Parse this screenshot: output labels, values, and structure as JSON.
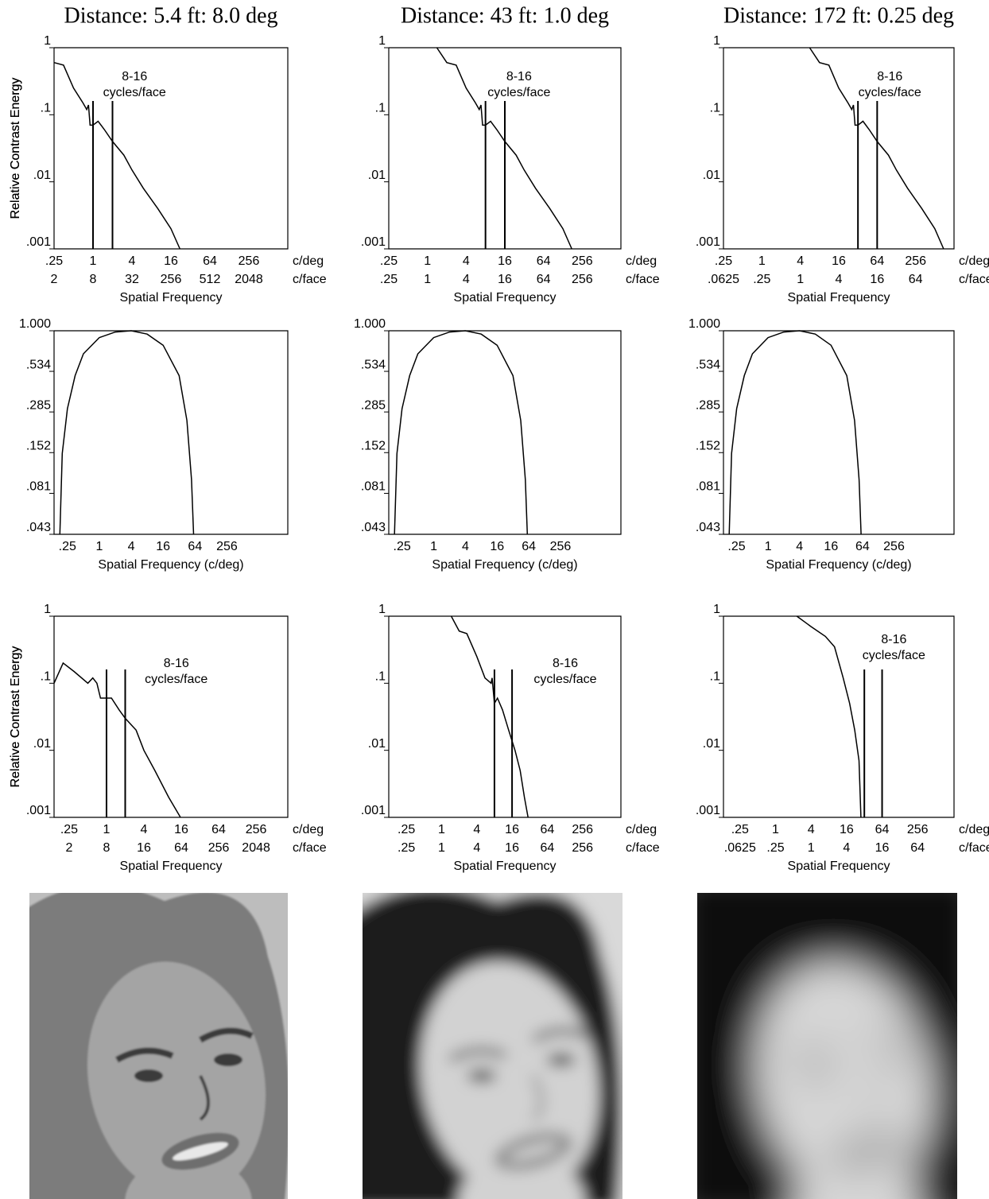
{
  "chart_data": [
    {
      "type": "line",
      "title": "Distance: 5.4 ft: 8.0 deg",
      "ylabel": "Relative Contrast Energy",
      "xlabel": "Spatial Frequency",
      "xunit": "c/deg",
      "x2unit": "c/face",
      "annotation": [
        "8-16",
        "cycles/face"
      ],
      "log_x": true,
      "log_y": true,
      "color": "#000000",
      "xlim": [
        0.25,
        1024
      ],
      "ylim": [
        0.001,
        1
      ],
      "xticks": [
        {
          "value": 0.25,
          "label": ".25"
        },
        1,
        4,
        16,
        64,
        256
      ],
      "x2ticks": [
        2,
        8,
        32,
        256,
        512,
        2048
      ],
      "yticks": [
        {
          "value": 0.001,
          "label": ".001"
        },
        {
          "value": 0.01,
          "label": ".01"
        },
        {
          "value": 0.1,
          "label": ".1"
        },
        1
      ],
      "markers": [
        1,
        2
      ],
      "x": [
        0.25,
        0.35,
        0.5,
        0.7,
        0.8,
        0.85,
        0.9,
        1,
        1.2,
        1.5,
        2,
        3,
        4,
        6,
        10,
        16,
        22
      ],
      "values": [
        0.6,
        0.55,
        0.25,
        0.15,
        0.12,
        0.14,
        0.07,
        0.07,
        0.08,
        0.06,
        0.04,
        0.025,
        0.015,
        0.008,
        0.004,
        0.002,
        0.001
      ]
    },
    {
      "type": "line",
      "title": "Distance: 43 ft: 1.0 deg",
      "ylabel": "Relative Contrast Energy",
      "xlabel": "Spatial Frequency",
      "xunit": "c/deg",
      "x2unit": "c/face",
      "annotation": [
        "8-16",
        "cycles/face"
      ],
      "log_x": true,
      "log_y": true,
      "color": "#000000",
      "xlim": [
        0.25,
        1024
      ],
      "ylim": [
        0.001,
        1
      ],
      "xticks": [
        {
          "value": 0.25,
          "label": ".25"
        },
        1,
        4,
        16,
        64,
        256
      ],
      "x2ticks": [
        {
          "value": 0.25,
          "label": ".25"
        },
        1,
        4,
        16,
        64,
        256
      ],
      "yticks": [
        {
          "value": 0.001,
          "label": ".001"
        },
        {
          "value": 0.01,
          "label": ".01"
        },
        {
          "value": 0.1,
          "label": ".1"
        },
        1
      ],
      "markers": [
        8,
        16
      ],
      "x": [
        1.4,
        2,
        2.8,
        4,
        5.6,
        6.4,
        6.8,
        7.2,
        8,
        9.6,
        12,
        16,
        24,
        32,
        48,
        80,
        128,
        176
      ],
      "values": [
        1,
        0.6,
        0.55,
        0.25,
        0.15,
        0.12,
        0.14,
        0.07,
        0.07,
        0.08,
        0.06,
        0.04,
        0.025,
        0.015,
        0.008,
        0.004,
        0.002,
        0.001
      ]
    },
    {
      "type": "line",
      "title": "Distance: 172 ft: 0.25 deg",
      "ylabel": "Relative Contrast Energy",
      "xlabel": "Spatial Frequency",
      "xunit": "c/deg",
      "x2unit": "c/face",
      "annotation": [
        "8-16",
        "cycles/face"
      ],
      "log_x": true,
      "log_y": true,
      "color": "#000000",
      "xlim": [
        0.25,
        1024
      ],
      "ylim": [
        0.001,
        1
      ],
      "xticks": [
        {
          "value": 0.25,
          "label": ".25"
        },
        1,
        4,
        16,
        64,
        256
      ],
      "x2ticks": [
        {
          "value": 0.0625,
          "label": ".0625"
        },
        {
          "value": 0.25,
          "label": ".25"
        },
        1,
        4,
        16,
        64
      ],
      "yticks": [
        {
          "value": 0.001,
          "label": ".001"
        },
        {
          "value": 0.01,
          "label": ".01"
        },
        {
          "value": 0.1,
          "label": ".1"
        },
        1
      ],
      "markers": [
        32,
        64
      ],
      "x": [
        5.6,
        8,
        11.2,
        16,
        22.4,
        25.6,
        27.2,
        28.8,
        32,
        38.4,
        48,
        64,
        96,
        128,
        192,
        320,
        512,
        704
      ],
      "values": [
        1,
        0.6,
        0.55,
        0.25,
        0.15,
        0.12,
        0.14,
        0.07,
        0.07,
        0.08,
        0.06,
        0.04,
        0.025,
        0.015,
        0.008,
        0.004,
        0.002,
        0.001
      ]
    },
    {
      "type": "line",
      "xlabel": "Spatial Frequency (c/deg)",
      "log_x": true,
      "log_y": true,
      "color": "#000000",
      "xlim": [
        0.14,
        3600
      ],
      "ylim": [
        0.043,
        1
      ],
      "xticks": [
        {
          "value": 0.25,
          "label": ".25"
        },
        1,
        4,
        16,
        64,
        256
      ],
      "yticks": [
        {
          "value": 0.043,
          "label": ".043"
        },
        {
          "value": 0.081,
          "label": ".081"
        },
        {
          "value": 0.152,
          "label": ".152"
        },
        {
          "value": 0.285,
          "label": ".285"
        },
        {
          "value": 0.534,
          "label": ".534"
        },
        {
          "value": 1,
          "label": "1.000"
        }
      ],
      "x": [
        0.18,
        0.2,
        0.25,
        0.35,
        0.5,
        1,
        2,
        4,
        8,
        16,
        32,
        45,
        55,
        60
      ],
      "values": [
        0.043,
        0.15,
        0.3,
        0.5,
        0.7,
        0.9,
        0.98,
        1,
        0.95,
        0.8,
        0.5,
        0.25,
        0.1,
        0.043
      ]
    },
    {
      "type": "line",
      "xlabel": "Spatial Frequency (c/deg)",
      "log_x": true,
      "log_y": true,
      "color": "#000000",
      "xlim": [
        0.14,
        3600
      ],
      "ylim": [
        0.043,
        1
      ],
      "xticks": [
        {
          "value": 0.25,
          "label": ".25"
        },
        1,
        4,
        16,
        64,
        256
      ],
      "yticks": [
        {
          "value": 0.043,
          "label": ".043"
        },
        {
          "value": 0.081,
          "label": ".081"
        },
        {
          "value": 0.152,
          "label": ".152"
        },
        {
          "value": 0.285,
          "label": ".285"
        },
        {
          "value": 0.534,
          "label": ".534"
        },
        {
          "value": 1,
          "label": "1.000"
        }
      ],
      "x": [
        0.18,
        0.2,
        0.25,
        0.35,
        0.5,
        1,
        2,
        4,
        8,
        16,
        32,
        45,
        55,
        60
      ],
      "values": [
        0.043,
        0.15,
        0.3,
        0.5,
        0.7,
        0.9,
        0.98,
        1,
        0.95,
        0.8,
        0.5,
        0.25,
        0.1,
        0.043
      ]
    },
    {
      "type": "line",
      "xlabel": "Spatial Frequency (c/deg)",
      "log_x": true,
      "log_y": true,
      "color": "#000000",
      "xlim": [
        0.14,
        3600
      ],
      "ylim": [
        0.043,
        1
      ],
      "xticks": [
        {
          "value": 0.25,
          "label": ".25"
        },
        1,
        4,
        16,
        64,
        256
      ],
      "yticks": [
        {
          "value": 0.043,
          "label": ".043"
        },
        {
          "value": 0.081,
          "label": ".081"
        },
        {
          "value": 0.152,
          "label": ".152"
        },
        {
          "value": 0.285,
          "label": ".285"
        },
        {
          "value": 0.534,
          "label": ".534"
        },
        {
          "value": 1,
          "label": "1.000"
        }
      ],
      "x": [
        0.18,
        0.2,
        0.25,
        0.35,
        0.5,
        1,
        2,
        4,
        8,
        16,
        32,
        45,
        55,
        60
      ],
      "values": [
        0.043,
        0.15,
        0.3,
        0.5,
        0.7,
        0.9,
        0.98,
        1,
        0.95,
        0.8,
        0.5,
        0.25,
        0.1,
        0.043
      ]
    },
    {
      "type": "line",
      "ylabel": "Relative Contrast Energy",
      "xlabel": "Spatial Frequency",
      "xunit": "c/deg",
      "x2unit": "c/face",
      "annotation": [
        "8-16",
        "cycles/face"
      ],
      "log_x": true,
      "log_y": true,
      "color": "#000000",
      "xlim": [
        0.143,
        830
      ],
      "ylim": [
        0.001,
        1
      ],
      "xticks": [
        {
          "value": 0.25,
          "label": ".25"
        },
        1,
        4,
        16,
        64,
        256
      ],
      "x2ticks": [
        2,
        8,
        16,
        64,
        256,
        2048
      ],
      "yticks": [
        {
          "value": 0.001,
          "label": ".001"
        },
        {
          "value": 0.01,
          "label": ".01"
        },
        {
          "value": 0.1,
          "label": ".1"
        },
        1
      ],
      "markers": [
        1,
        2
      ],
      "x": [
        0.143,
        0.2,
        0.3,
        0.5,
        0.6,
        0.7,
        0.8,
        1,
        1.2,
        1.6,
        2,
        3,
        4,
        6,
        10,
        15.5
      ],
      "values": [
        0.1,
        0.2,
        0.15,
        0.1,
        0.12,
        0.1,
        0.06,
        0.06,
        0.06,
        0.04,
        0.03,
        0.02,
        0.01,
        0.005,
        0.002,
        0.001
      ]
    },
    {
      "type": "line",
      "ylabel": "Relative Contrast Energy",
      "xlabel": "Spatial Frequency",
      "xunit": "c/deg",
      "x2unit": "c/face",
      "annotation": [
        "8-16",
        "cycles/face"
      ],
      "log_x": true,
      "log_y": true,
      "color": "#000000",
      "xlim": [
        0.125,
        1160
      ],
      "ylim": [
        0.001,
        1
      ],
      "xticks": [
        {
          "value": 0.25,
          "label": ".25"
        },
        1,
        4,
        16,
        64,
        256
      ],
      "x2ticks": [
        {
          "value": 0.25,
          "label": ".25"
        },
        1,
        4,
        16,
        64,
        256
      ],
      "yticks": [
        {
          "value": 0.001,
          "label": ".001"
        },
        {
          "value": 0.01,
          "label": ".01"
        },
        {
          "value": 0.1,
          "label": ".1"
        },
        1
      ],
      "markers": [
        8,
        16
      ],
      "x": [
        1.46,
        2,
        2.7,
        4,
        5.5,
        7,
        7.3,
        8,
        9,
        11,
        14,
        18,
        22,
        26,
        30
      ],
      "values": [
        1,
        0.6,
        0.55,
        0.25,
        0.12,
        0.1,
        0.12,
        0.05,
        0.06,
        0.04,
        0.02,
        0.01,
        0.005,
        0.002,
        0.001
      ]
    },
    {
      "type": "line",
      "ylabel": "Relative Contrast Energy",
      "xlabel": "Spatial Frequency",
      "xunit": "c/deg",
      "x2unit": "c/face",
      "annotation": [
        "8-16",
        "cycles/face"
      ],
      "log_x": true,
      "log_y": true,
      "color": "#000000",
      "xlim": [
        0.131,
        1060
      ],
      "ylim": [
        0.001,
        1
      ],
      "xticks": [
        {
          "value": 0.25,
          "label": ".25"
        },
        1,
        4,
        16,
        64,
        256
      ],
      "x2ticks": [
        {
          "value": 0.0625,
          "label": ".0625"
        },
        {
          "value": 0.25,
          "label": ".25"
        },
        1,
        4,
        16,
        64
      ],
      "yticks": [
        {
          "value": 0.001,
          "label": ".001"
        },
        {
          "value": 0.01,
          "label": ".01"
        },
        {
          "value": 0.1,
          "label": ".1"
        },
        1
      ],
      "markers": [
        32,
        64
      ],
      "x": [
        2.3,
        4,
        7,
        10,
        14,
        18,
        22,
        26,
        28
      ],
      "values": [
        1,
        0.7,
        0.5,
        0.35,
        0.12,
        0.05,
        0.02,
        0.007,
        0.001
      ]
    }
  ]
}
